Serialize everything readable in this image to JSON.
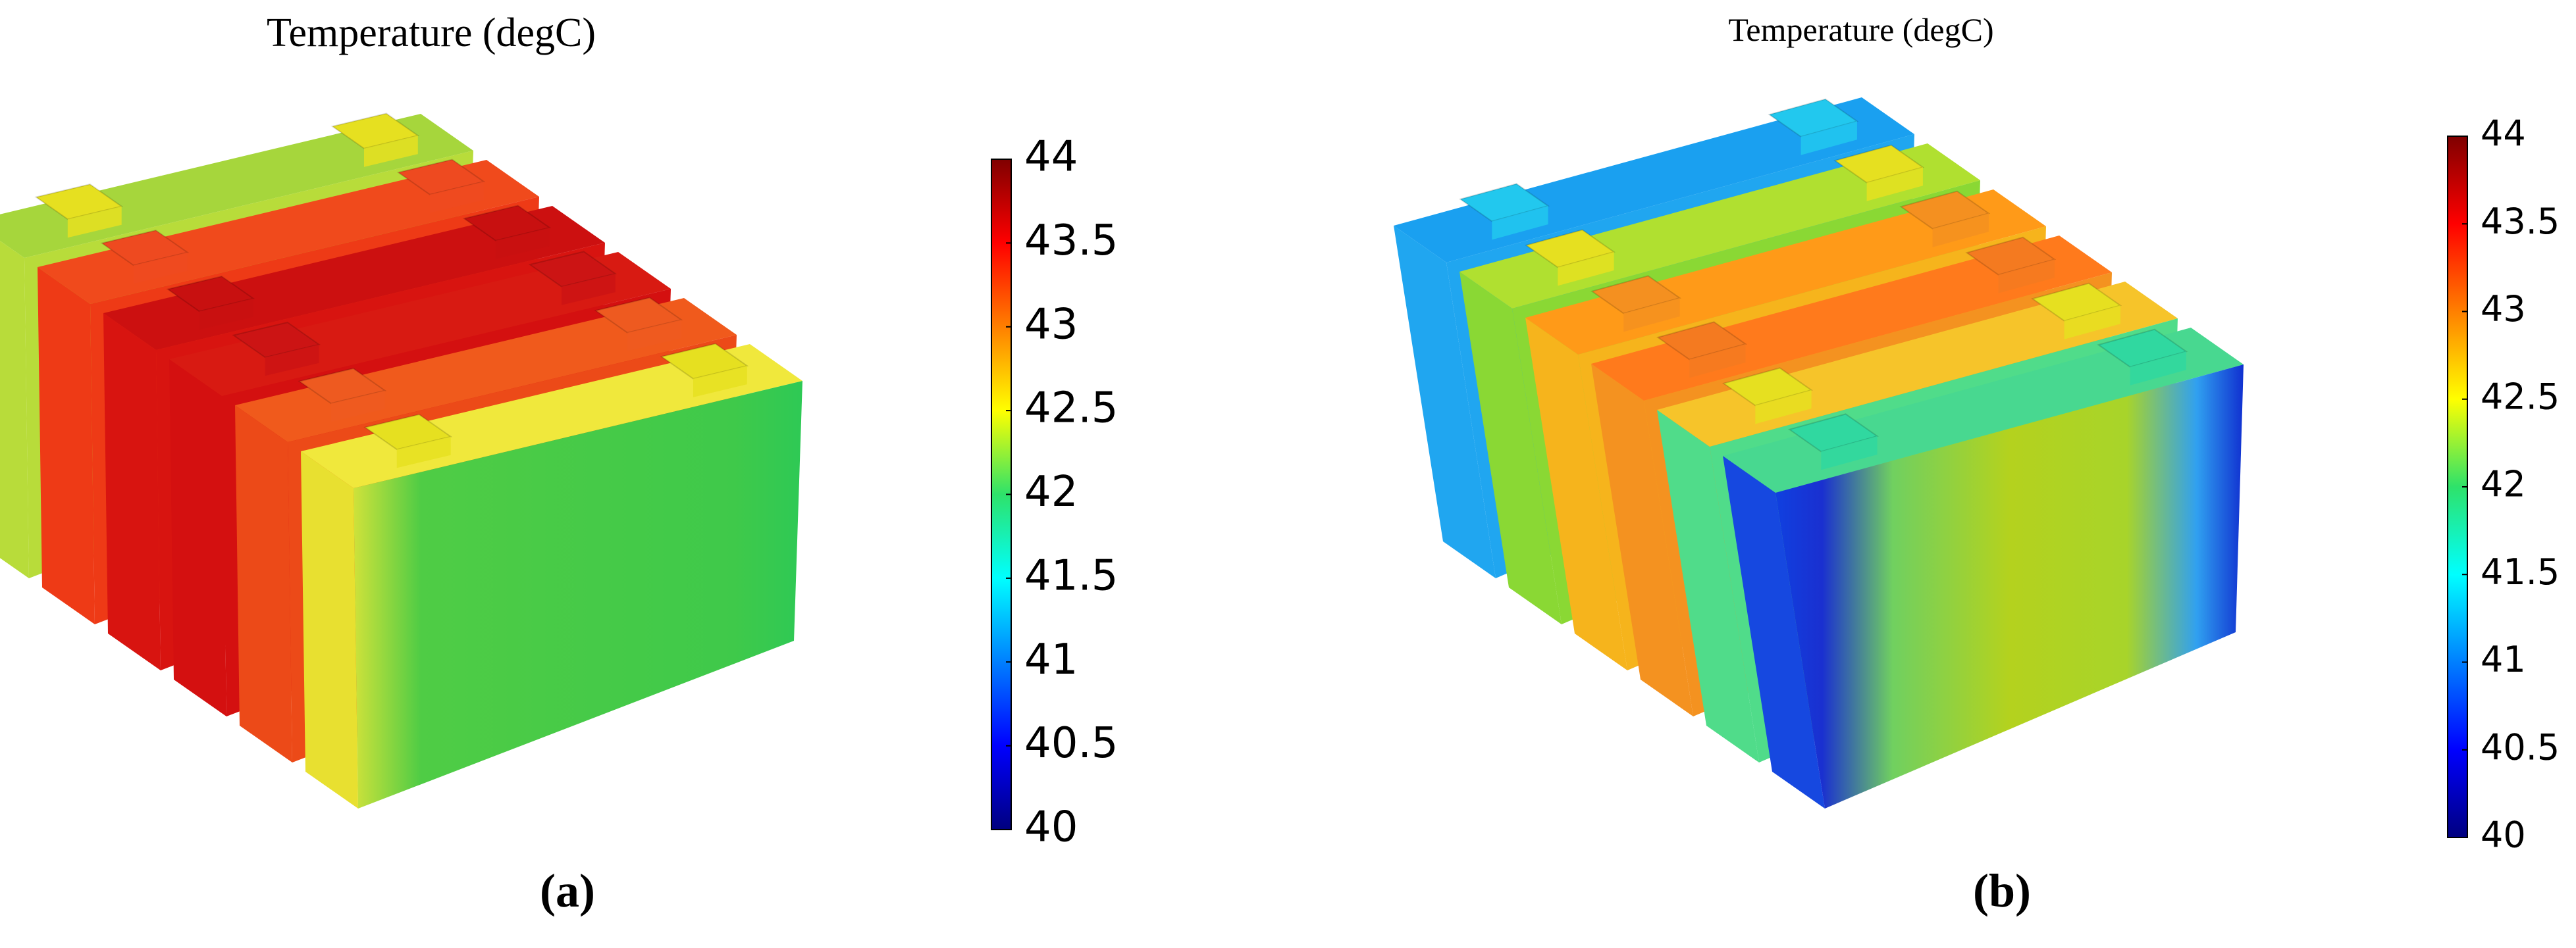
{
  "panels": [
    {
      "title": "Temperature (degC)",
      "label": "(a)",
      "colorbar": {
        "lim": [
          40,
          44
        ],
        "ticks": [
          40,
          40.5,
          41,
          41.5,
          42,
          42.5,
          43,
          43.5,
          44
        ]
      }
    },
    {
      "title": "Temperature (degC)",
      "label": "(b)",
      "colorbar": {
        "lim": [
          40,
          44
        ],
        "ticks": [
          40,
          40.5,
          41,
          41.5,
          42,
          42.5,
          43,
          43.5,
          44
        ]
      }
    }
  ]
}
